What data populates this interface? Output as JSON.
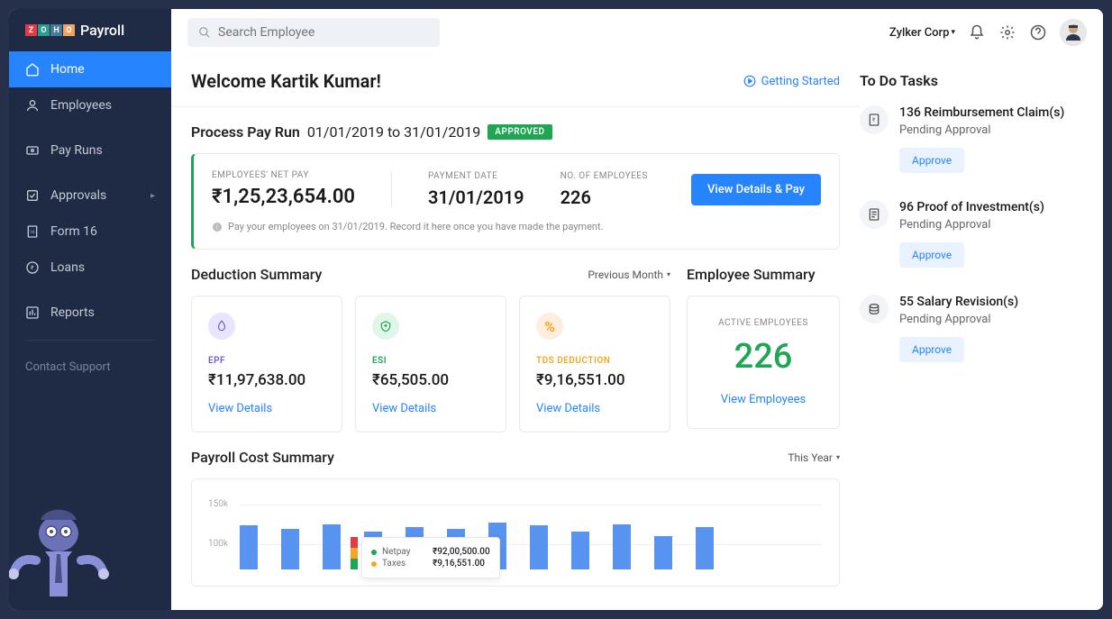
{
  "brand": {
    "name": "Payroll",
    "letters": [
      "Z",
      "O",
      "H",
      "O"
    ]
  },
  "nav": {
    "items": [
      {
        "label": "Home",
        "icon": "home"
      },
      {
        "label": "Employees",
        "icon": "user"
      },
      {
        "label": "Pay Runs",
        "icon": "money"
      },
      {
        "label": "Approvals",
        "icon": "check",
        "chevron": true
      },
      {
        "label": "Form 16",
        "icon": "doc"
      },
      {
        "label": "Loans",
        "icon": "rupee"
      },
      {
        "label": "Reports",
        "icon": "chart"
      }
    ],
    "contact": "Contact Support"
  },
  "topbar": {
    "search_placeholder": "Search Employee",
    "corp": "Zylker Corp"
  },
  "welcome": {
    "text": "Welcome Kartik Kumar!",
    "getting": "Getting Started"
  },
  "payrun": {
    "title": "Process Pay Run",
    "range": "01/01/2019 to 31/01/2019",
    "status": "APPROVED",
    "net_label": "EMPLOYEES' NET PAY",
    "net_value": "₹1,25,23,654.00",
    "date_label": "PAYMENT DATE",
    "date_value": "31/01/2019",
    "emp_label": "NO. OF EMPLOYEES",
    "emp_value": "226",
    "button": "View Details & Pay",
    "note": "Pay your employees on 31/01/2019. Record it here once you have made the payment."
  },
  "deduction": {
    "title": "Deduction Summary",
    "period": "Previous Month",
    "cards": [
      {
        "label": "EPF",
        "value": "₹11,97,638.00",
        "color": "purple",
        "link": "View Details"
      },
      {
        "label": "ESI",
        "value": "₹65,505.00",
        "color": "green",
        "link": "View Details"
      },
      {
        "label": "TDS DEDUCTION",
        "value": "₹9,16,551.00",
        "color": "orange",
        "link": "View Details"
      }
    ]
  },
  "emp_summary": {
    "title": "Employee Summary",
    "label": "ACTIVE EMPLOYEES",
    "count": "226",
    "link": "View Employees"
  },
  "chart": {
    "title": "Payroll Cost Summary",
    "period": "This Year",
    "y_labels": [
      "150k",
      "100k"
    ],
    "bars_pct": [
      68,
      62,
      70,
      58,
      65,
      62,
      72,
      68,
      58,
      70,
      52,
      65
    ],
    "bar_color": "#5893ef",
    "tooltip": {
      "rows": [
        {
          "color": "#1ea653",
          "label": "Netpay",
          "value": "₹92,00,500.00"
        },
        {
          "color": "#f5a623",
          "label": "Taxes",
          "value": "₹9,16,551.00"
        }
      ]
    },
    "traffic": [
      "#e63946",
      "#f5a623",
      "#1ea653"
    ]
  },
  "todo": {
    "title": "To Do Tasks",
    "tasks": [
      {
        "title": "136 Reimbursement Claim(s)",
        "sub": "Pending Approval",
        "btn": "Approve"
      },
      {
        "title": "96 Proof of Investment(s)",
        "sub": "Pending Approval",
        "btn": "Approve"
      },
      {
        "title": "55 Salary Revision(s)",
        "sub": "Pending Approval",
        "btn": "Approve"
      }
    ]
  }
}
